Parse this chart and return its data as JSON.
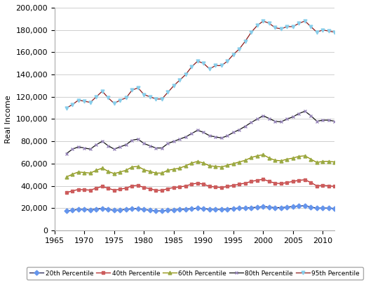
{
  "title": "",
  "ylabel": "Real Income",
  "xlabel": "",
  "xlim": [
    1965,
    2012
  ],
  "ylim": [
    0,
    200000
  ],
  "yticks": [
    0,
    20000,
    40000,
    60000,
    80000,
    100000,
    120000,
    140000,
    160000,
    180000,
    200000
  ],
  "xticks": [
    1965,
    1970,
    1975,
    1980,
    1985,
    1990,
    1995,
    2000,
    2005,
    2010
  ],
  "years": [
    1967,
    1968,
    1969,
    1970,
    1971,
    1972,
    1973,
    1974,
    1975,
    1976,
    1977,
    1978,
    1979,
    1980,
    1981,
    1982,
    1983,
    1984,
    1985,
    1986,
    1987,
    1988,
    1989,
    1990,
    1991,
    1992,
    1993,
    1994,
    1995,
    1996,
    1997,
    1998,
    1999,
    2000,
    2001,
    2002,
    2003,
    2004,
    2005,
    2006,
    2007,
    2008,
    2009,
    2010,
    2011,
    2012
  ],
  "p20": [
    17500,
    18200,
    18900,
    18800,
    18500,
    19200,
    19800,
    18900,
    18100,
    18500,
    18800,
    19500,
    19600,
    18800,
    18200,
    17600,
    17500,
    18200,
    18600,
    18800,
    19200,
    19500,
    20000,
    19700,
    18900,
    18800,
    18800,
    19200,
    19800,
    20000,
    20200,
    20500,
    20800,
    21500,
    21000,
    20500,
    20500,
    21000,
    21500,
    22000,
    22200,
    21000,
    20000,
    20200,
    20000,
    19800
  ],
  "p40": [
    34000,
    35500,
    36800,
    36500,
    36200,
    38000,
    39500,
    37800,
    36200,
    37000,
    38000,
    40000,
    40500,
    38500,
    37500,
    36000,
    36000,
    37500,
    38500,
    39000,
    40000,
    41500,
    42500,
    41500,
    39500,
    39000,
    38500,
    39500,
    40500,
    41500,
    42500,
    44000,
    45000,
    46000,
    44000,
    42500,
    42000,
    43000,
    44000,
    45000,
    45500,
    43000,
    40000,
    40500,
    40000,
    39500
  ],
  "p60": [
    48000,
    50500,
    52500,
    52000,
    51500,
    54000,
    56000,
    53000,
    51000,
    52500,
    54000,
    57000,
    57500,
    54500,
    53000,
    51500,
    51500,
    54000,
    55000,
    56000,
    58000,
    60500,
    62000,
    60500,
    58000,
    57500,
    57000,
    58500,
    60000,
    61500,
    63000,
    65500,
    67000,
    68000,
    65000,
    63000,
    62500,
    64000,
    65000,
    66500,
    67000,
    64000,
    61000,
    62000,
    62000,
    61500
  ],
  "p80": [
    69000,
    73000,
    75000,
    74000,
    73000,
    77000,
    80000,
    76000,
    73000,
    75000,
    77000,
    81000,
    82000,
    78000,
    76000,
    74000,
    74000,
    78000,
    80000,
    82000,
    84000,
    87000,
    90000,
    88000,
    85000,
    84000,
    83000,
    85000,
    88000,
    90500,
    93500,
    97000,
    100000,
    103000,
    100500,
    98000,
    97500,
    100000,
    102000,
    105000,
    107000,
    103000,
    98000,
    99000,
    99000,
    98000
  ],
  "p95": [
    110000,
    113000,
    117000,
    116000,
    115000,
    120000,
    125000,
    119000,
    114000,
    117000,
    119000,
    126000,
    128000,
    122000,
    120000,
    118000,
    118000,
    124000,
    130000,
    135000,
    140000,
    147000,
    152000,
    150000,
    145000,
    148000,
    148000,
    152000,
    158000,
    163000,
    170000,
    178000,
    184000,
    188000,
    186000,
    182000,
    181000,
    183000,
    183000,
    186000,
    188000,
    183000,
    178000,
    180000,
    179000,
    178000
  ],
  "line_colors": {
    "p20": "#1a1a4e",
    "p40": "#b22222",
    "p60": "#8b8b00",
    "p80": "#111111",
    "p95": "#8b1a1a"
  },
  "marker_colors": {
    "p20": "#6495ed",
    "p40": "#cd5c5c",
    "p60": "#9aaa44",
    "p80": "#9988bb",
    "p95": "#87ceeb"
  },
  "markers": {
    "p20": "D",
    "p40": "s",
    "p60": "^",
    "p80": "x",
    "p95": "v"
  },
  "labels": {
    "p20": "20th Percentile",
    "p40": "40th Percentile",
    "p60": "60th Percentile",
    "p80": "80th Percentile",
    "p95": "95th Percentile"
  },
  "bg_color": "#ffffff",
  "grid_color": "#c8c8c8"
}
